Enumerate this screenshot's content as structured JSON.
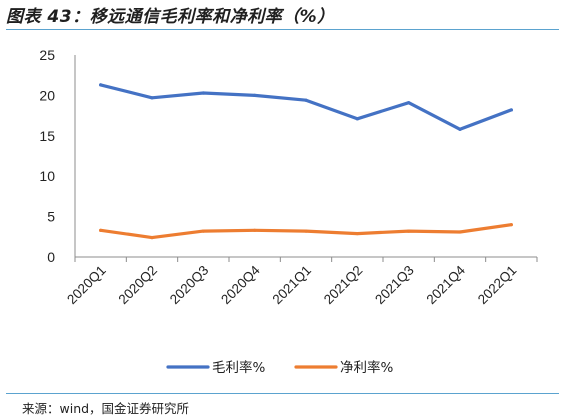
{
  "title": "图表 43：移远通信毛利率和净利率（%）",
  "source": "来源：wind，国金证券研究所",
  "chart_data": {
    "type": "line",
    "title": "图表 43：移远通信毛利率和净利率（%）",
    "xlabel": "",
    "ylabel": "",
    "categories": [
      "2020Q1",
      "2020Q2",
      "2020Q3",
      "2020Q4",
      "2021Q1",
      "2021Q2",
      "2021Q3",
      "2021Q4",
      "2022Q1"
    ],
    "ylim": [
      0,
      25
    ],
    "yticks": [
      "0",
      "5",
      "10",
      "15",
      "20",
      "25"
    ],
    "grid": false,
    "legend_position": "bottom",
    "series": [
      {
        "name": "毛利率%",
        "color": "#4472c4",
        "values": [
          21.3,
          19.7,
          20.3,
          20.0,
          19.4,
          17.1,
          19.1,
          15.8,
          18.2
        ]
      },
      {
        "name": "净利率%",
        "color": "#ed7d31",
        "values": [
          3.3,
          2.4,
          3.2,
          3.3,
          3.2,
          2.9,
          3.2,
          3.1,
          4.0
        ]
      }
    ]
  }
}
